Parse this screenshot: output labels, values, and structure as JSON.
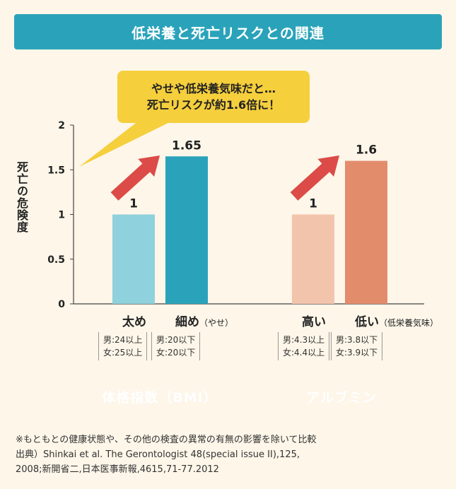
{
  "title": "低栄養と死亡リスクとの関連",
  "callout": {
    "line1": "やせや低栄養気味だと…",
    "line2": "死亡リスクが約1.6倍に！"
  },
  "ylabel": "死亡の危険度",
  "chart_data": {
    "type": "bar",
    "ylim": [
      0,
      2
    ],
    "yticks": [
      "0",
      "0.5",
      "1",
      "1.5",
      "2"
    ],
    "bars": [
      {
        "category": "太め",
        "sub": "",
        "value": 1,
        "label": "1",
        "color": "#8fd1dc",
        "note": [
          "男:24以上",
          "女:25以上"
        ]
      },
      {
        "category": "細め",
        "sub": "（やせ）",
        "value": 1.65,
        "label": "1.65",
        "color": "#2aa3ba",
        "note": [
          "男:20以下",
          "女:20以下"
        ]
      },
      {
        "category": "高い",
        "sub": "",
        "value": 1,
        "label": "1",
        "color": "#f3c4ac",
        "note": [
          "男:4.3以上",
          "女:4.4以上"
        ]
      },
      {
        "category": "低い",
        "sub": "（低栄養気味）",
        "value": 1.6,
        "label": "1.6",
        "color": "#e38c6c",
        "note": [
          "男:3.8以下",
          "女:3.9以下"
        ]
      }
    ],
    "groups": [
      {
        "label": "体格指数（BMI）",
        "color": "#2aa3ba"
      },
      {
        "label": "アルブミン",
        "color": "#e38c6c"
      }
    ],
    "arrow_color": "#dc4b47",
    "grid": false
  },
  "footer": {
    "line1": "※もともとの健康状態や、その他の検査の異常の有無の影響を除いて比較",
    "line2": "出典）Shinkai et al. The Gerontologist 48(special issue II),125,",
    "line3": "2008;新開省二,日本医事新報,4615,71-77.2012"
  }
}
